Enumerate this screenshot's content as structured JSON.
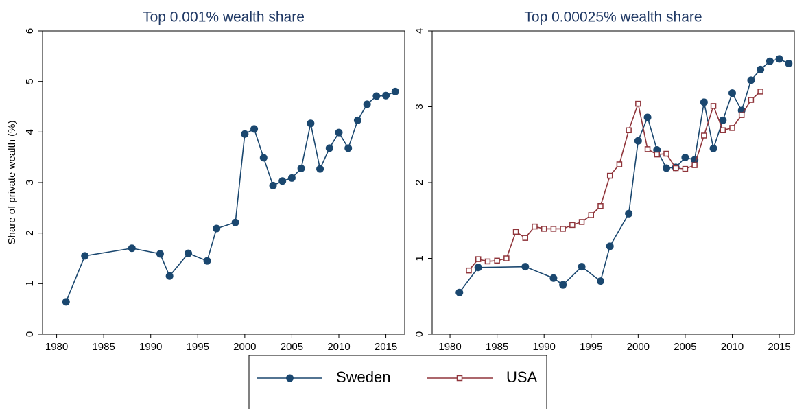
{
  "chart_data": [
    {
      "type": "line",
      "title": "Top 0.001% wealth share",
      "y_label": "Share of private wealth (%)",
      "xlim": [
        1978.5,
        2017
      ],
      "xticks": [
        1980,
        1985,
        1990,
        1995,
        2000,
        2005,
        2010,
        2015
      ],
      "ylim": [
        0,
        6
      ],
      "yticks": [
        0,
        1,
        2,
        3,
        4,
        5,
        6
      ],
      "series": [
        {
          "name": "Sweden",
          "color": "#1a476f",
          "marker": "circle",
          "x": [
            1981,
            1983,
            1988,
            1991,
            1992,
            1994,
            1996,
            1997,
            1999,
            2000,
            2001,
            2002,
            2003,
            2004,
            2005,
            2006,
            2007,
            2008,
            2009,
            2010,
            2011,
            2012,
            2013,
            2014,
            2015,
            2016
          ],
          "values": [
            0.64,
            1.55,
            1.7,
            1.59,
            1.15,
            1.6,
            1.45,
            2.09,
            2.21,
            3.96,
            4.06,
            3.49,
            2.94,
            3.03,
            3.09,
            3.28,
            4.17,
            3.27,
            3.68,
            3.99,
            3.68,
            4.23,
            4.55,
            4.71,
            4.72,
            4.8
          ]
        }
      ]
    },
    {
      "type": "line",
      "title": "Top 0.00025% wealth share",
      "xlim": [
        1978.1,
        2016.6
      ],
      "xticks": [
        1980,
        1985,
        1990,
        1995,
        2000,
        2005,
        2010,
        2015
      ],
      "ylim": [
        0,
        4
      ],
      "yticks": [
        0,
        1,
        2,
        3,
        4
      ],
      "series": [
        {
          "name": "Sweden",
          "color": "#1a476f",
          "marker": "circle",
          "x": [
            1981,
            1983,
            1988,
            1991,
            1992,
            1994,
            1996,
            1997,
            1999,
            2000,
            2001,
            2002,
            2003,
            2004,
            2005,
            2006,
            2007,
            2008,
            2009,
            2010,
            2011,
            2012,
            2013,
            2014,
            2015,
            2016
          ],
          "values": [
            0.55,
            0.88,
            0.89,
            0.74,
            0.65,
            0.89,
            0.7,
            1.16,
            1.59,
            2.55,
            2.86,
            2.43,
            2.19,
            2.2,
            2.33,
            2.3,
            3.06,
            2.45,
            2.82,
            3.18,
            2.95,
            3.35,
            3.49,
            3.6,
            3.63,
            3.57
          ]
        },
        {
          "name": "USA",
          "color": "#90353b",
          "marker": "square",
          "x": [
            1982,
            1983,
            1984,
            1985,
            1986,
            1987,
            1988,
            1989,
            1990,
            1991,
            1992,
            1993,
            1994,
            1995,
            1996,
            1997,
            1998,
            1999,
            2000,
            2001,
            2002,
            2003,
            2004,
            2005,
            2006,
            2007,
            2008,
            2009,
            2010,
            2011,
            2012,
            2013
          ],
          "values": [
            0.84,
            0.99,
            0.96,
            0.97,
            1.0,
            1.35,
            1.27,
            1.42,
            1.39,
            1.39,
            1.39,
            1.44,
            1.48,
            1.57,
            1.69,
            2.09,
            2.24,
            2.69,
            3.04,
            2.44,
            2.37,
            2.38,
            2.19,
            2.18,
            2.23,
            2.62,
            3.01,
            2.69,
            2.72,
            2.89,
            3.09,
            3.2
          ]
        }
      ]
    }
  ]
}
